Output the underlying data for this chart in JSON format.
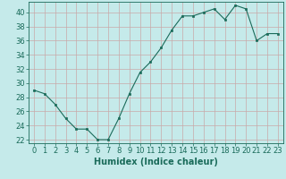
{
  "x": [
    0,
    1,
    2,
    3,
    4,
    5,
    6,
    7,
    8,
    9,
    10,
    11,
    12,
    13,
    14,
    15,
    16,
    17,
    18,
    19,
    20,
    21,
    22,
    23
  ],
  "y": [
    29,
    28.5,
    27,
    25,
    23.5,
    23.5,
    22,
    22,
    25,
    28.5,
    31.5,
    33,
    35,
    37.5,
    39.5,
    39.5,
    40,
    40.5,
    39,
    41,
    40.5,
    36,
    37,
    37
  ],
  "line_color": "#1a6b5a",
  "marker": "s",
  "marker_size": 2,
  "bg_color": "#c5eaea",
  "grid_color": "#c8a8a8",
  "xlabel": "Humidex (Indice chaleur)",
  "xlim": [
    -0.5,
    23.5
  ],
  "ylim": [
    21.5,
    41.5
  ],
  "yticks": [
    22,
    24,
    26,
    28,
    30,
    32,
    34,
    36,
    38,
    40
  ],
  "xticks": [
    0,
    1,
    2,
    3,
    4,
    5,
    6,
    7,
    8,
    9,
    10,
    11,
    12,
    13,
    14,
    15,
    16,
    17,
    18,
    19,
    20,
    21,
    22,
    23
  ],
  "tick_color": "#1a6b5a",
  "label_fontsize": 7,
  "tick_fontsize": 6,
  "linewidth": 0.8
}
